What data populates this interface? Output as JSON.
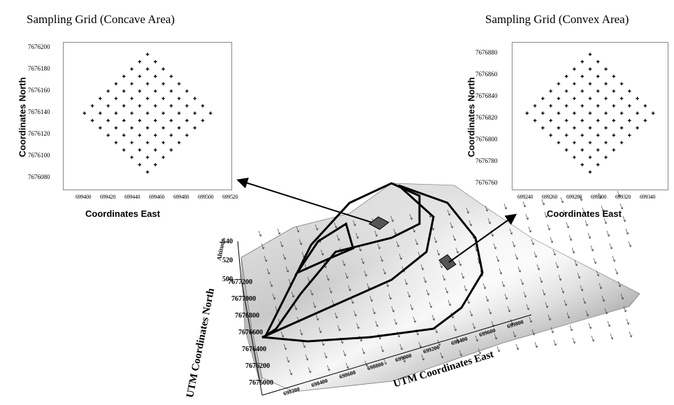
{
  "left_panel": {
    "title": "Sampling Grid (Concave Area)",
    "ylabel": "Coordinates North",
    "xlabel": "Coordinates East",
    "yticks": [
      "7676200",
      "7676180",
      "7676160",
      "7676140",
      "7676120",
      "7676100",
      "7676080"
    ],
    "xticks": [
      "699400",
      "699420",
      "699440",
      "699460",
      "699480",
      "699500",
      "699520"
    ]
  },
  "right_panel": {
    "title": "Sampling Grid (Convex Area)",
    "ylabel": "Coordinates North",
    "xlabel": "Coordinates East",
    "yticks": [
      "7676880",
      "7676860",
      "7676840",
      "7676820",
      "7676800",
      "7676780",
      "7676760"
    ],
    "xticks": [
      "699240",
      "699260",
      "699280",
      "699300",
      "699320",
      "699340"
    ]
  },
  "surface": {
    "z_label": "Altitude",
    "z_ticks": [
      "540",
      "520",
      "500"
    ],
    "y_label": "UTM Coordinates North",
    "y_ticks": [
      "7677200",
      "7677000",
      "7676800",
      "7676600",
      "7676400",
      "7676200",
      "7676000"
    ],
    "x_label": "UTM Coordinates East",
    "x_ticks": [
      "698200",
      "698400",
      "698600",
      "698800",
      "699000",
      "699200",
      "699400",
      "699600",
      "699800"
    ]
  },
  "colors": {
    "marker": "#000000",
    "surface_light": "#f4f4f4",
    "surface_dark": "#9a9a9a",
    "patch": "#555555"
  }
}
